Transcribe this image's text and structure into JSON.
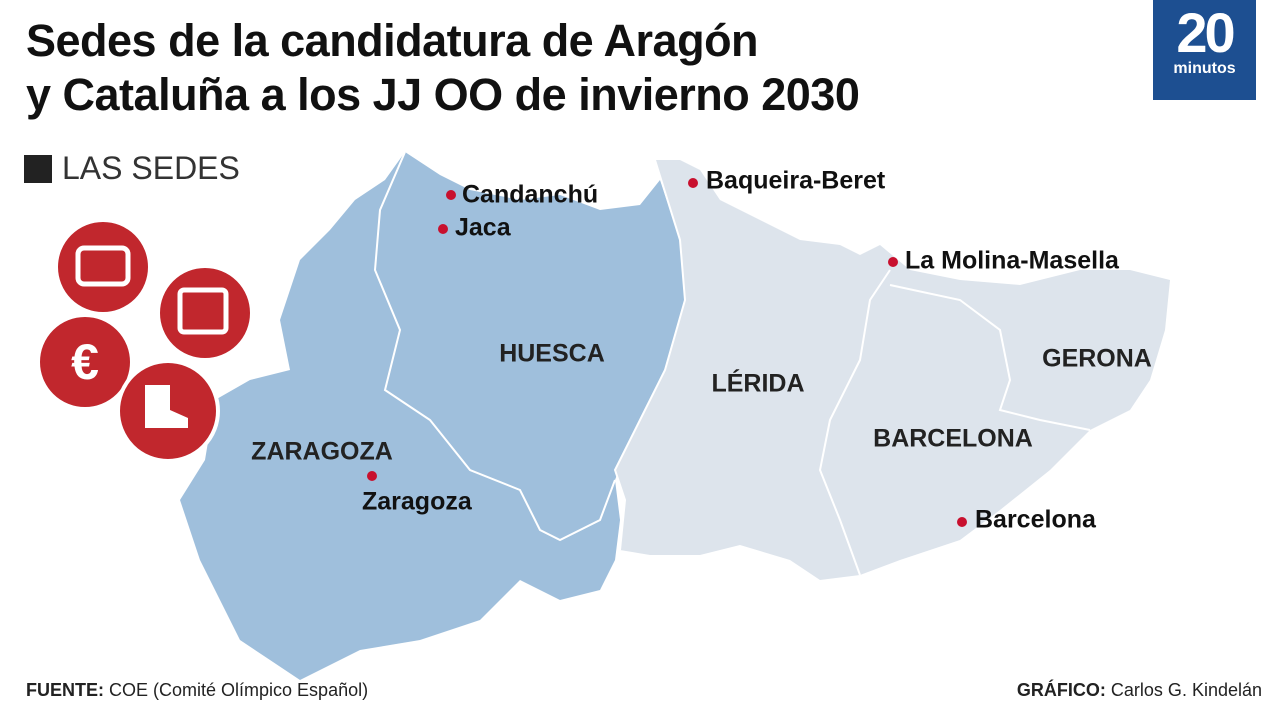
{
  "header": {
    "title_line1": "Sedes de la candidatura de Aragón",
    "title_line2": "y Cataluña a los JJ OO de invierno 2030",
    "logo_number": "20",
    "logo_word": "minutos",
    "section": "LAS SEDES"
  },
  "regions": [
    "HUESCA",
    "ZARAGOZA",
    "LÉRIDA",
    "BARCELONA",
    "GERONA"
  ],
  "venues": [
    "Candanchú",
    "Jaca",
    "Zaragoza",
    "Baqueira-Beret",
    "La Molina-Masella",
    "Barcelona"
  ],
  "footer": {
    "source_label": "FUENTE:",
    "source": "COE (Comité Olímpico Español)",
    "credit_label": "GRÁFICO:",
    "credit": "Carlos G. Kindelán"
  }
}
